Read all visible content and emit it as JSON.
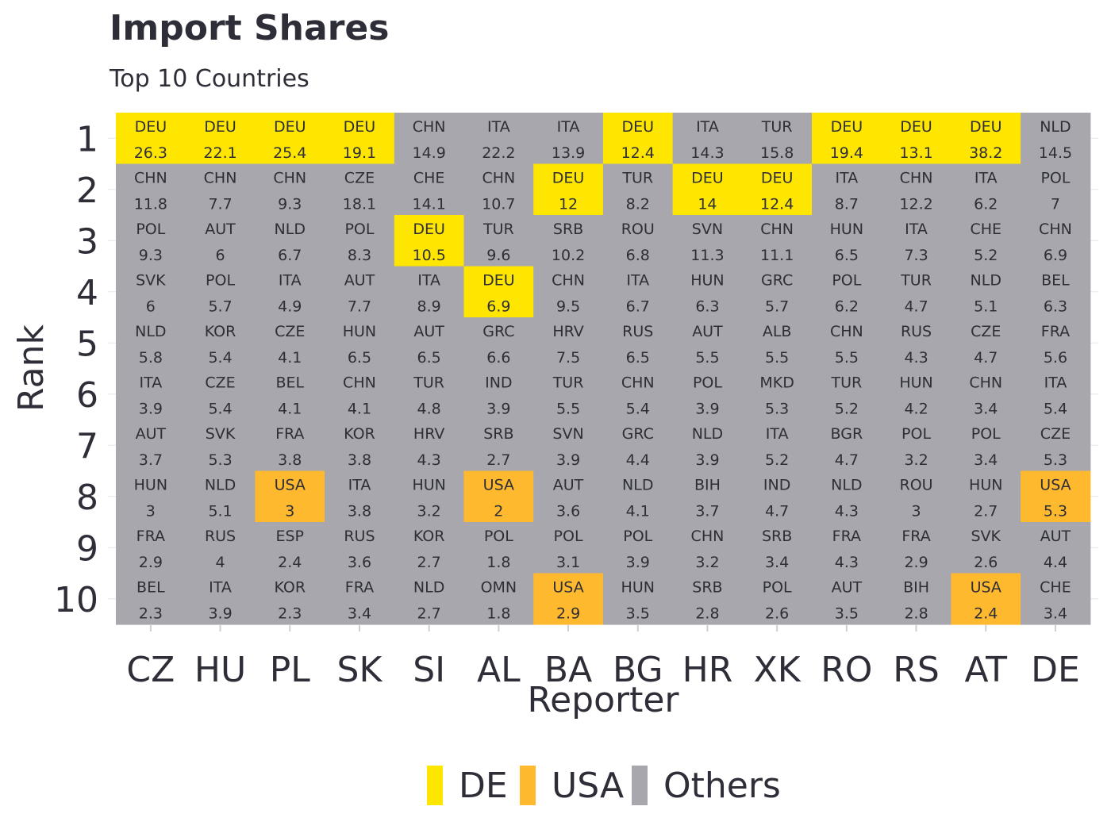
{
  "title": "Import Shares",
  "subtitle": "Top 10 Countries",
  "colors": {
    "DE": "#ffe600",
    "USA": "#ffb92e",
    "Others": "#a7a7ad",
    "grid": "#e6e6e6",
    "text": "#2e2e38"
  },
  "legend": [
    {
      "key": "DE",
      "label": "DE"
    },
    {
      "key": "USA",
      "label": "USA"
    },
    {
      "key": "Others",
      "label": "Others"
    }
  ],
  "chart_data": {
    "type": "heatmap",
    "title": "Import Shares",
    "subtitle": "Top 10 Countries",
    "xlabel": "Reporter",
    "ylabel": "Rank",
    "reporters": [
      "CZ",
      "HU",
      "PL",
      "SK",
      "SI",
      "AL",
      "BA",
      "BG",
      "HR",
      "XK",
      "RO",
      "RS",
      "AT",
      "DE"
    ],
    "ranks": [
      "1",
      "2",
      "3",
      "4",
      "5",
      "6",
      "7",
      "8",
      "9",
      "10"
    ],
    "cells": [
      [
        [
          "DEU",
          "26.3"
        ],
        [
          "DEU",
          "22.1"
        ],
        [
          "DEU",
          "25.4"
        ],
        [
          "DEU",
          "19.1"
        ],
        [
          "CHN",
          "14.9"
        ],
        [
          "ITA",
          "22.2"
        ],
        [
          "ITA",
          "13.9"
        ],
        [
          "DEU",
          "12.4"
        ],
        [
          "ITA",
          "14.3"
        ],
        [
          "TUR",
          "15.8"
        ],
        [
          "DEU",
          "19.4"
        ],
        [
          "DEU",
          "13.1"
        ],
        [
          "DEU",
          "38.2"
        ],
        [
          "NLD",
          "14.5"
        ]
      ],
      [
        [
          "CHN",
          "11.8"
        ],
        [
          "CHN",
          "7.7"
        ],
        [
          "CHN",
          "9.3"
        ],
        [
          "CZE",
          "18.1"
        ],
        [
          "CHE",
          "14.1"
        ],
        [
          "CHN",
          "10.7"
        ],
        [
          "DEU",
          "12"
        ],
        [
          "TUR",
          "8.2"
        ],
        [
          "DEU",
          "14"
        ],
        [
          "DEU",
          "12.4"
        ],
        [
          "ITA",
          "8.7"
        ],
        [
          "CHN",
          "12.2"
        ],
        [
          "ITA",
          "6.2"
        ],
        [
          "POL",
          "7"
        ]
      ],
      [
        [
          "POL",
          "9.3"
        ],
        [
          "AUT",
          "6"
        ],
        [
          "NLD",
          "6.7"
        ],
        [
          "POL",
          "8.3"
        ],
        [
          "DEU",
          "10.5"
        ],
        [
          "TUR",
          "9.6"
        ],
        [
          "SRB",
          "10.2"
        ],
        [
          "ROU",
          "6.8"
        ],
        [
          "SVN",
          "11.3"
        ],
        [
          "CHN",
          "11.1"
        ],
        [
          "HUN",
          "6.5"
        ],
        [
          "ITA",
          "7.3"
        ],
        [
          "CHE",
          "5.2"
        ],
        [
          "CHN",
          "6.9"
        ]
      ],
      [
        [
          "SVK",
          "6"
        ],
        [
          "POL",
          "5.7"
        ],
        [
          "ITA",
          "4.9"
        ],
        [
          "AUT",
          "7.7"
        ],
        [
          "ITA",
          "8.9"
        ],
        [
          "DEU",
          "6.9"
        ],
        [
          "CHN",
          "9.5"
        ],
        [
          "ITA",
          "6.7"
        ],
        [
          "HUN",
          "6.3"
        ],
        [
          "GRC",
          "5.7"
        ],
        [
          "POL",
          "6.2"
        ],
        [
          "TUR",
          "4.7"
        ],
        [
          "NLD",
          "5.1"
        ],
        [
          "BEL",
          "6.3"
        ]
      ],
      [
        [
          "NLD",
          "5.8"
        ],
        [
          "KOR",
          "5.4"
        ],
        [
          "CZE",
          "4.1"
        ],
        [
          "HUN",
          "6.5"
        ],
        [
          "AUT",
          "6.5"
        ],
        [
          "GRC",
          "6.6"
        ],
        [
          "HRV",
          "7.5"
        ],
        [
          "RUS",
          "6.5"
        ],
        [
          "AUT",
          "5.5"
        ],
        [
          "ALB",
          "5.5"
        ],
        [
          "CHN",
          "5.5"
        ],
        [
          "RUS",
          "4.3"
        ],
        [
          "CZE",
          "4.7"
        ],
        [
          "FRA",
          "5.6"
        ]
      ],
      [
        [
          "ITA",
          "3.9"
        ],
        [
          "CZE",
          "5.4"
        ],
        [
          "BEL",
          "4.1"
        ],
        [
          "CHN",
          "4.1"
        ],
        [
          "TUR",
          "4.8"
        ],
        [
          "IND",
          "3.9"
        ],
        [
          "TUR",
          "5.5"
        ],
        [
          "CHN",
          "5.4"
        ],
        [
          "POL",
          "3.9"
        ],
        [
          "MKD",
          "5.3"
        ],
        [
          "TUR",
          "5.2"
        ],
        [
          "HUN",
          "4.2"
        ],
        [
          "CHN",
          "3.4"
        ],
        [
          "ITA",
          "5.4"
        ]
      ],
      [
        [
          "AUT",
          "3.7"
        ],
        [
          "SVK",
          "5.3"
        ],
        [
          "FRA",
          "3.8"
        ],
        [
          "KOR",
          "3.8"
        ],
        [
          "HRV",
          "4.3"
        ],
        [
          "SRB",
          "2.7"
        ],
        [
          "SVN",
          "3.9"
        ],
        [
          "GRC",
          "4.4"
        ],
        [
          "NLD",
          "3.9"
        ],
        [
          "ITA",
          "5.2"
        ],
        [
          "BGR",
          "4.7"
        ],
        [
          "POL",
          "3.2"
        ],
        [
          "POL",
          "3.4"
        ],
        [
          "CZE",
          "5.3"
        ]
      ],
      [
        [
          "HUN",
          "3"
        ],
        [
          "NLD",
          "5.1"
        ],
        [
          "USA",
          "3"
        ],
        [
          "ITA",
          "3.8"
        ],
        [
          "HUN",
          "3.2"
        ],
        [
          "USA",
          "2"
        ],
        [
          "AUT",
          "3.6"
        ],
        [
          "NLD",
          "4.1"
        ],
        [
          "BIH",
          "3.7"
        ],
        [
          "IND",
          "4.7"
        ],
        [
          "NLD",
          "4.3"
        ],
        [
          "ROU",
          "3"
        ],
        [
          "HUN",
          "2.7"
        ],
        [
          "USA",
          "5.3"
        ]
      ],
      [
        [
          "FRA",
          "2.9"
        ],
        [
          "RUS",
          "4"
        ],
        [
          "ESP",
          "2.4"
        ],
        [
          "RUS",
          "3.6"
        ],
        [
          "KOR",
          "2.7"
        ],
        [
          "POL",
          "1.8"
        ],
        [
          "POL",
          "3.1"
        ],
        [
          "POL",
          "3.9"
        ],
        [
          "CHN",
          "3.2"
        ],
        [
          "SRB",
          "3.4"
        ],
        [
          "FRA",
          "4.3"
        ],
        [
          "FRA",
          "2.9"
        ],
        [
          "SVK",
          "2.6"
        ],
        [
          "AUT",
          "4.4"
        ]
      ],
      [
        [
          "BEL",
          "2.3"
        ],
        [
          "ITA",
          "3.9"
        ],
        [
          "KOR",
          "2.3"
        ],
        [
          "FRA",
          "3.4"
        ],
        [
          "NLD",
          "2.7"
        ],
        [
          "OMN",
          "1.8"
        ],
        [
          "USA",
          "2.9"
        ],
        [
          "HUN",
          "3.5"
        ],
        [
          "SRB",
          "2.8"
        ],
        [
          "POL",
          "2.6"
        ],
        [
          "AUT",
          "3.5"
        ],
        [
          "BIH",
          "2.8"
        ],
        [
          "USA",
          "2.4"
        ],
        [
          "CHE",
          "3.4"
        ]
      ]
    ]
  }
}
